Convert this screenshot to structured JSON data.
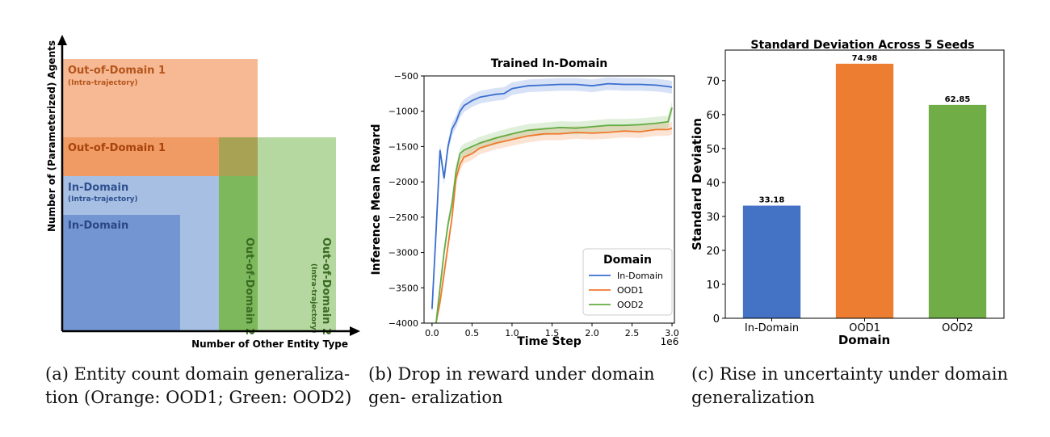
{
  "chart_data": [
    {
      "type": "diagram",
      "xlabel": "Number of Other Entity Type",
      "ylabel": "Number of (Parameterized) Agents",
      "regions": [
        {
          "title": "Out-of-Domain 1",
          "subtitle": "(Intra-trajectory)",
          "color": "#f6b994"
        },
        {
          "title": "Out-of-Domain 1",
          "subtitle": "",
          "color": "#f09b64"
        },
        {
          "title": "In-Domain",
          "subtitle": "(Intra-trajectory)",
          "color": "#a6bfe3"
        },
        {
          "title": "In-Domain",
          "subtitle": "",
          "color": "#7396d3"
        },
        {
          "title": "Out-of-Domain 2",
          "subtitle": "",
          "color": "#7db85c"
        },
        {
          "title": "Out-of-Domain 2",
          "subtitle": "(Intra-trajectory)",
          "color": "#b5d7a0"
        }
      ],
      "overlap_color": "#a7a254"
    },
    {
      "type": "line",
      "title": "Trained In-Domain",
      "xlabel": "Time Step",
      "ylabel": "Inference Mean Reward",
      "x_multiplier": "1e6",
      "xlim": [
        -0.1,
        3.03
      ],
      "ylim": [
        -4000,
        -500
      ],
      "xticks": [
        "0.0",
        "0.5",
        "1.0",
        "1.5",
        "2.0",
        "2.5",
        "3.0"
      ],
      "xtick_values": [
        0,
        0.5,
        1.0,
        1.5,
        2.0,
        2.5,
        3.0
      ],
      "yticks": [
        "−500",
        "−1000",
        "−1500",
        "−2000",
        "−2500",
        "−3000",
        "−3500",
        "−4000"
      ],
      "ytick_values": [
        -500,
        -1000,
        -1500,
        -2000,
        -2500,
        -3000,
        -3500,
        -4000
      ],
      "legend_title": "Domain",
      "legend_position": "lower-right",
      "series": [
        {
          "name": "In-Domain",
          "color": "#3a6fd0",
          "x": [
            0.0,
            0.05,
            0.1,
            0.15,
            0.2,
            0.25,
            0.3,
            0.35,
            0.4,
            0.5,
            0.6,
            0.7,
            0.8,
            0.9,
            1.0,
            1.2,
            1.4,
            1.6,
            1.8,
            2.0,
            2.2,
            2.4,
            2.6,
            2.8,
            2.95,
            3.0
          ],
          "y": [
            -3800,
            -2700,
            -1550,
            -1950,
            -1500,
            -1250,
            -1150,
            -1000,
            -920,
            -850,
            -800,
            -780,
            -760,
            -750,
            -680,
            -640,
            -630,
            -620,
            -620,
            -640,
            -610,
            -620,
            -620,
            -630,
            -650,
            -660
          ]
        },
        {
          "name": "OOD1",
          "color": "#f07a2e",
          "x": [
            0.05,
            0.1,
            0.15,
            0.2,
            0.25,
            0.3,
            0.35,
            0.4,
            0.5,
            0.6,
            0.8,
            1.0,
            1.2,
            1.4,
            1.6,
            1.8,
            2.0,
            2.2,
            2.4,
            2.6,
            2.8,
            2.95,
            3.0
          ],
          "y": [
            -4000,
            -3700,
            -3300,
            -2900,
            -2500,
            -1950,
            -1750,
            -1650,
            -1600,
            -1520,
            -1450,
            -1400,
            -1350,
            -1320,
            -1320,
            -1300,
            -1310,
            -1300,
            -1280,
            -1290,
            -1260,
            -1260,
            -1240
          ]
        },
        {
          "name": "OOD2",
          "color": "#62ad45",
          "x": [
            0.05,
            0.1,
            0.15,
            0.2,
            0.25,
            0.3,
            0.35,
            0.4,
            0.5,
            0.6,
            0.8,
            1.0,
            1.2,
            1.4,
            1.6,
            1.8,
            2.0,
            2.2,
            2.4,
            2.6,
            2.8,
            2.95,
            3.0
          ],
          "y": [
            -4000,
            -3500,
            -3000,
            -2600,
            -2300,
            -1850,
            -1600,
            -1550,
            -1500,
            -1450,
            -1380,
            -1320,
            -1270,
            -1250,
            -1230,
            -1240,
            -1220,
            -1200,
            -1200,
            -1190,
            -1170,
            -1150,
            -950
          ]
        }
      ]
    },
    {
      "type": "bar",
      "title": "Standard Deviation Across 5 Seeds",
      "xlabel": "Domain",
      "ylabel": "Standard Deviation",
      "ylim": [
        0,
        79
      ],
      "yticks": [
        "0",
        "10",
        "20",
        "30",
        "40",
        "50",
        "60",
        "70"
      ],
      "ytick_values": [
        0,
        10,
        20,
        30,
        40,
        50,
        60,
        70
      ],
      "categories": [
        "In-Domain",
        "OOD1",
        "OOD2"
      ],
      "values": [
        33.18,
        74.98,
        62.85
      ],
      "value_labels": [
        "33.18",
        "74.98",
        "62.85"
      ],
      "colors": [
        "#4472c4",
        "#ed7d31",
        "#70ad47"
      ]
    }
  ],
  "captions": {
    "a": "(a) Entity count domain generaliza- tion (Orange: OOD1; Green: OOD2)",
    "b": "(b) Drop in reward under domain gen- eralization",
    "c": "(c) Rise in uncertainty under domain generalization"
  }
}
